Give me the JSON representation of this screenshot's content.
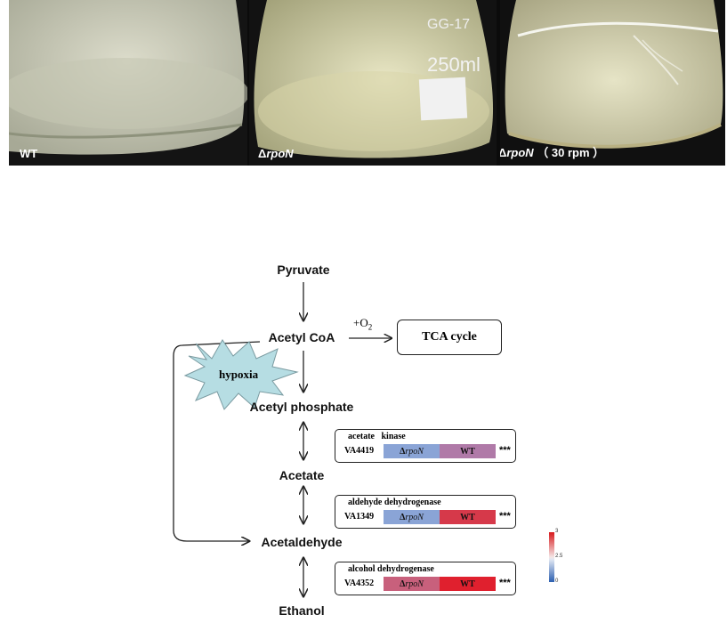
{
  "photos": {
    "labels": [
      {
        "prefix": "",
        "italic": "",
        "text": "WT",
        "suffix": ""
      },
      {
        "prefix": "Δ",
        "italic": "rpoN",
        "text": "",
        "suffix": ""
      },
      {
        "prefix": "Δ",
        "italic": "rpoN",
        "text": "",
        "suffix": " （ 30 rpm ）"
      }
    ],
    "flask_print": [
      "GG-17",
      "250ml"
    ]
  },
  "pathway": {
    "nodes": {
      "pyruvate": "Pyruvate",
      "acetyl_coa": "Acetyl CoA",
      "acetyl_phosphate": "Acetyl phosphate",
      "acetate": "Acetate",
      "acetaldehyde": "Acetaldehyde",
      "ethanol": "Ethanol"
    },
    "tca": "TCA cycle",
    "o2_main": "+O",
    "o2_sub": "2",
    "hypoxia": "hypoxia"
  },
  "genes": [
    {
      "title": "acetate   kinase",
      "id": "VA4419",
      "cell_a_prefix": "Δ",
      "cell_a_italic": "rpoN",
      "cell_b": "WT",
      "sig": "***",
      "color_a": "#8aa4d6",
      "color_b": "#b07aa8"
    },
    {
      "title": "aldehyde dehydrogenase",
      "id": "VA1349",
      "cell_a_prefix": "Δ",
      "cell_a_italic": "rpoN",
      "cell_b": "WT",
      "sig": "***",
      "color_a": "#8aa4d6",
      "color_b": "#d6394a"
    },
    {
      "title": "alcohol dehydrogenase",
      "id": "VA4352",
      "cell_a_prefix": "Δ",
      "cell_a_italic": "rpoN",
      "cell_b": "WT",
      "sig": "***",
      "color_a": "#c8607c",
      "color_b": "#e0202e"
    }
  ],
  "scale": {
    "max": "3",
    "mid": "2.5",
    "min": "0"
  }
}
